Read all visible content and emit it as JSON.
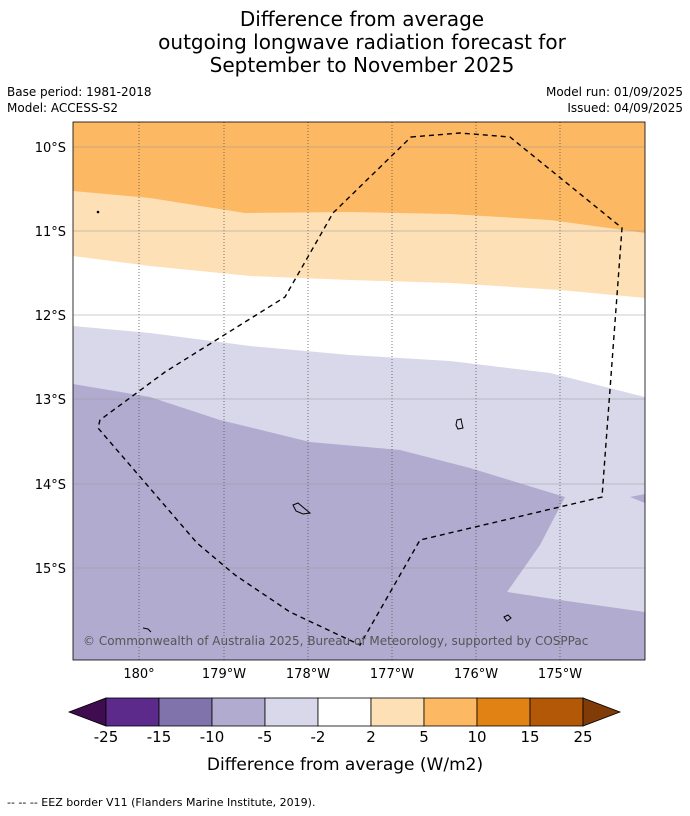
{
  "title": {
    "line1": "Difference from average",
    "line2": "outgoing longwave radiation forecast for",
    "line3": "September to November 2025"
  },
  "meta": {
    "base_period": "Base period: 1981-2018",
    "model": "Model: ACCESS-S2",
    "model_run": "Model run: 01/09/2025",
    "issued": "Issued: 04/09/2025"
  },
  "map": {
    "lat_ticks": [
      "10°S",
      "11°S",
      "12°S",
      "13°S",
      "14°S",
      "15°S"
    ],
    "lon_ticks": [
      "180°",
      "179°W",
      "178°W",
      "177°W",
      "176°W",
      "175°W"
    ],
    "copyright": "© Commonwealth of Australia 2025, Bureau of Meteorology, supported by COSPPac"
  },
  "colorbar": {
    "ticks": [
      "-25",
      "-15",
      "-10",
      "-5",
      "-2",
      "2",
      "5",
      "10",
      "15",
      "25"
    ],
    "colors": [
      "#3f0d4f",
      "#5b2a8a",
      "#8072aa",
      "#b1abd0",
      "#d8d8ea",
      "#ffffff",
      "#fee0b6",
      "#fcb862",
      "#e08214",
      "#b35806",
      "#7f3b08"
    ],
    "label": "Difference from average (W/m2)"
  },
  "footer": "--  --  -- EEZ border V11 (Flanders Marine Institute, 2019)."
}
